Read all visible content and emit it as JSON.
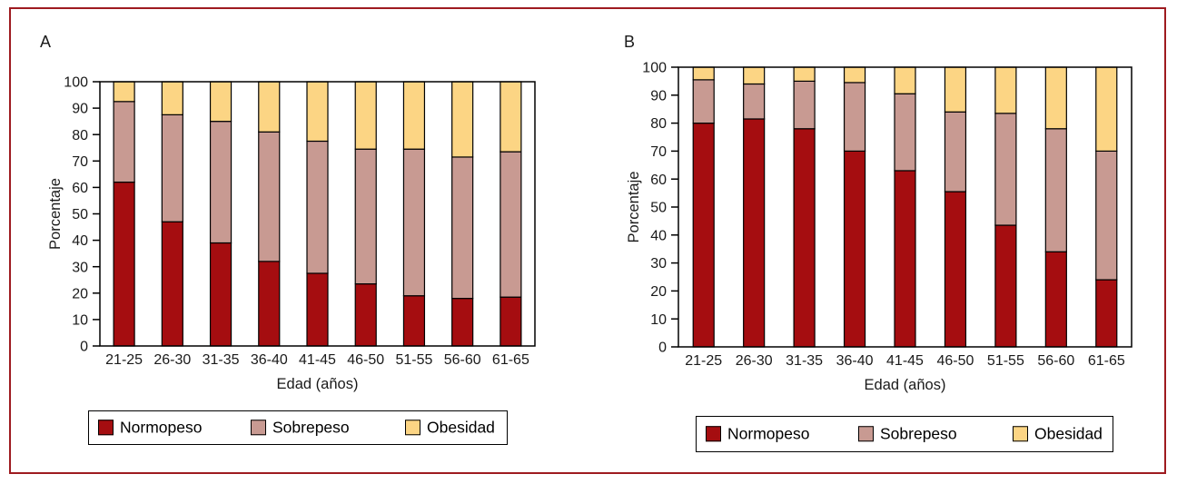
{
  "figure": {
    "border_color": "#9e1b20",
    "background": "#ffffff",
    "panels": [
      {
        "id": "A",
        "label": "A"
      },
      {
        "id": "B",
        "label": "B"
      }
    ],
    "legend": {
      "items": [
        {
          "label": "Normopeso",
          "color": "#a50d10"
        },
        {
          "label": "Sobrepeso",
          "color": "#c89a92"
        },
        {
          "label": "Obesidad",
          "color": "#fcd584"
        }
      ]
    }
  },
  "chart_data": [
    {
      "type": "bar",
      "stacked": true,
      "panel": "A",
      "title": "",
      "categories": [
        "21-25",
        "26-30",
        "31-35",
        "36-40",
        "41-45",
        "46-50",
        "51-55",
        "56-60",
        "61-65"
      ],
      "series": [
        {
          "name": "Normopeso",
          "color": "#a50d10",
          "values": [
            62,
            47,
            39,
            32,
            27.5,
            23.5,
            19,
            18,
            18.5
          ]
        },
        {
          "name": "Sobrepeso",
          "color": "#c89a92",
          "values": [
            30.5,
            40.5,
            46,
            49,
            50,
            51,
            55.5,
            53.5,
            55
          ]
        },
        {
          "name": "Obesidad",
          "color": "#fcd584",
          "values": [
            7.5,
            12.5,
            15,
            19,
            22.5,
            25.5,
            25.5,
            28.5,
            26.5
          ]
        }
      ],
      "xlabel": "Edad (años)",
      "ylabel": "Porcentaje",
      "ylim": [
        0,
        100
      ],
      "yticks": [
        0,
        10,
        20,
        30,
        40,
        50,
        60,
        70,
        80,
        90,
        100
      ],
      "grid": false,
      "legend_position": "bottom"
    },
    {
      "type": "bar",
      "stacked": true,
      "panel": "B",
      "title": "",
      "categories": [
        "21-25",
        "26-30",
        "31-35",
        "36-40",
        "41-45",
        "46-50",
        "51-55",
        "56-60",
        "61-65"
      ],
      "series": [
        {
          "name": "Normopeso",
          "color": "#a50d10",
          "values": [
            80,
            81.5,
            78,
            70,
            63,
            55.5,
            43.5,
            34,
            24
          ]
        },
        {
          "name": "Sobrepeso",
          "color": "#c89a92",
          "values": [
            15.5,
            12.5,
            17,
            24.5,
            27.5,
            28.5,
            40,
            44,
            46
          ]
        },
        {
          "name": "Obesidad",
          "color": "#fcd584",
          "values": [
            4.5,
            6,
            5,
            5.5,
            9.5,
            16,
            16.5,
            22,
            30
          ]
        }
      ],
      "xlabel": "Edad (años)",
      "ylabel": "Porcentaje",
      "ylim": [
        0,
        100
      ],
      "yticks": [
        0,
        10,
        20,
        30,
        40,
        50,
        60,
        70,
        80,
        90,
        100
      ],
      "grid": false,
      "legend_position": "bottom"
    }
  ]
}
